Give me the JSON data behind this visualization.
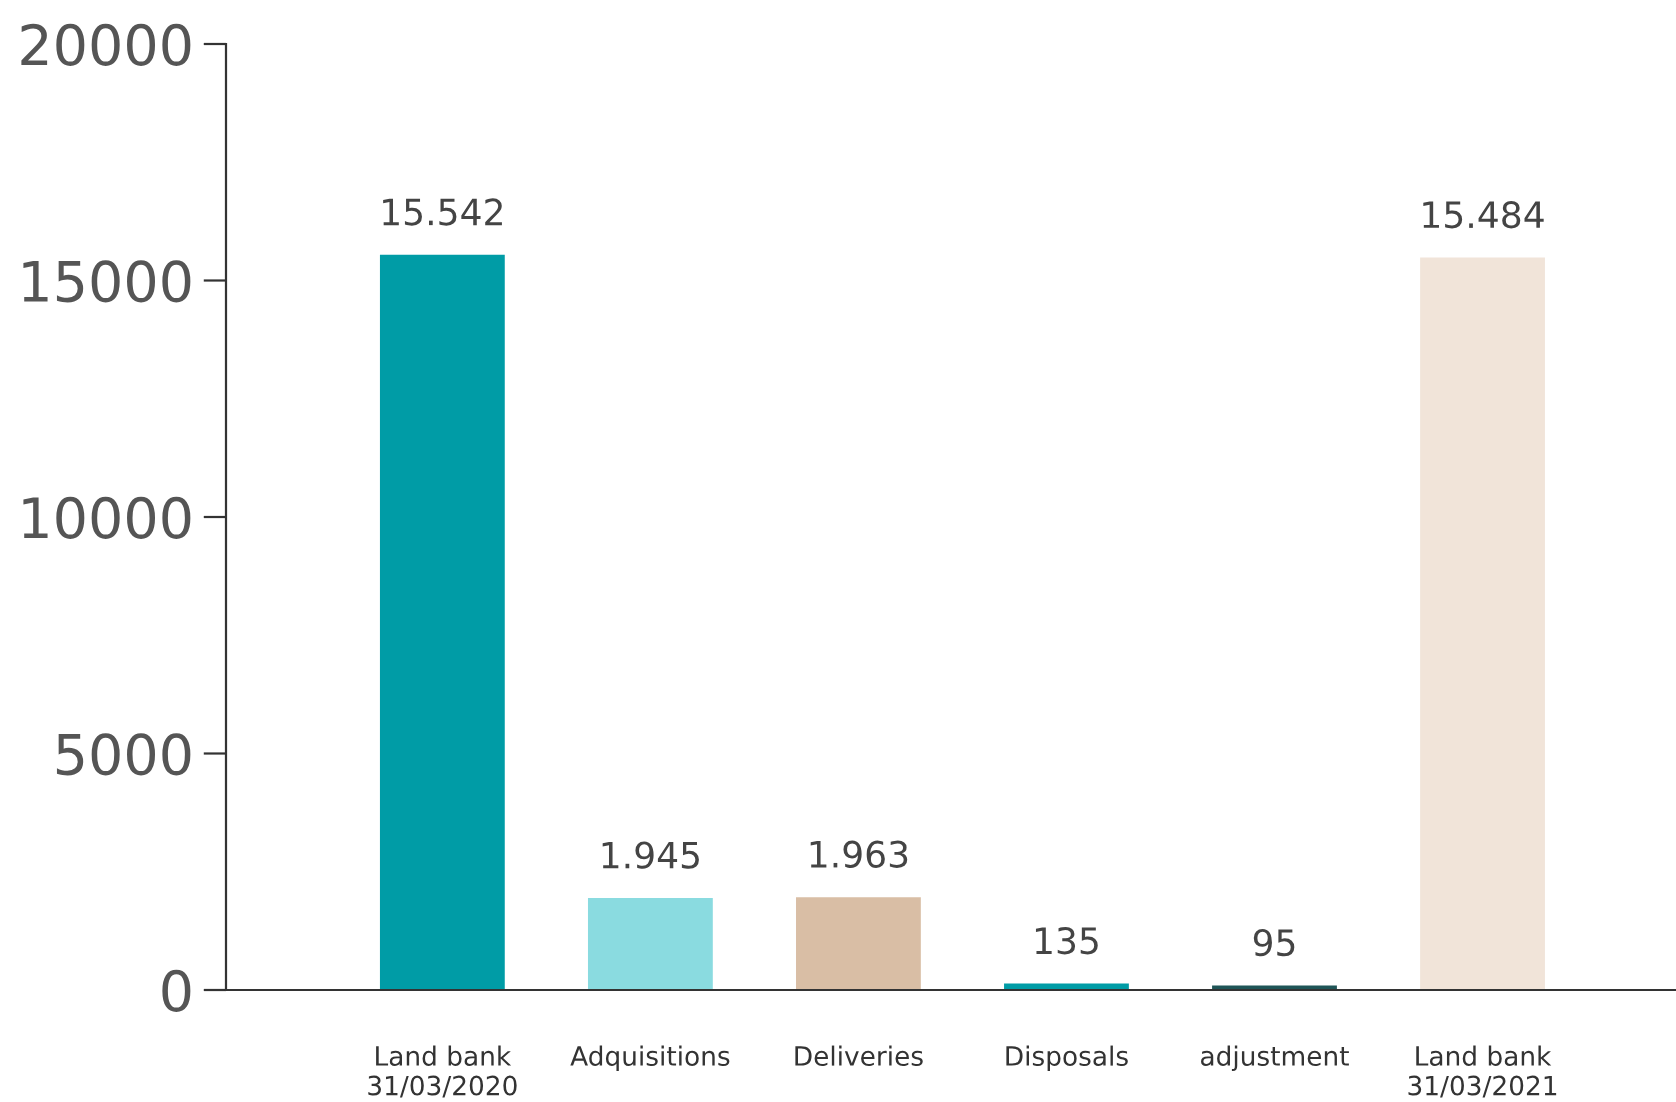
{
  "chart_data": {
    "type": "bar",
    "categories": [
      "Land bank\n31/03/2020",
      "Adquisitions",
      "Deliveries",
      "Disposals",
      "adjustment",
      "Land bank\n31/03/2021"
    ],
    "values": [
      15542,
      1945,
      1963,
      135,
      95,
      15484
    ],
    "colors": [
      "#009ca6",
      "#8adbe0",
      "#d9bea5",
      "#009ca6",
      "#1f5557",
      "#f1e4d9"
    ],
    "value_labels": [
      "15.542",
      "1.945",
      "1.963",
      "135",
      "95",
      "15.484"
    ],
    "ylim": [
      0,
      20000
    ],
    "yticks": [
      0,
      5000,
      10000,
      15000,
      20000
    ],
    "grid": false,
    "legend": false
  }
}
